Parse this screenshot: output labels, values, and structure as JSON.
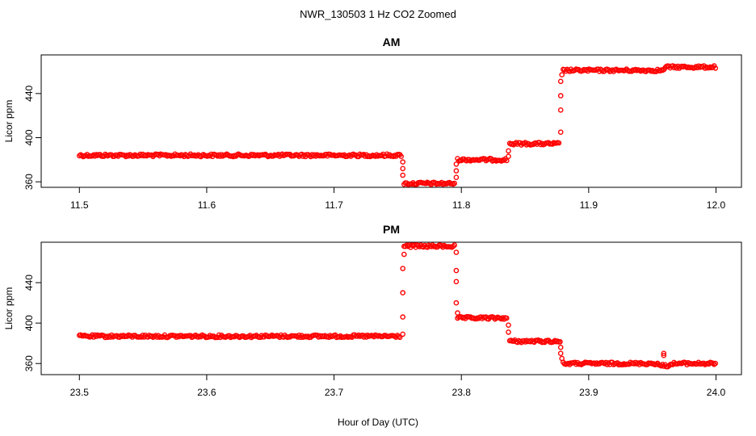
{
  "figure": {
    "title": "NWR_130503  1 Hz CO2 Zoomed",
    "xlabel": "Hour of Day (UTC)"
  },
  "chart_data": [
    {
      "type": "scatter",
      "title": "AM",
      "xlabel": "",
      "ylabel": "Licor ppm",
      "xlim": [
        11.47,
        12.02
      ],
      "ylim": [
        355,
        475
      ],
      "xticks": [
        "11.5",
        "11.6",
        "11.7",
        "11.8",
        "11.9",
        "12.0"
      ],
      "xtick_values": [
        11.5,
        11.6,
        11.7,
        11.8,
        11.9,
        12.0
      ],
      "yticks": [
        "360",
        "400",
        "440"
      ],
      "ytick_values": [
        360,
        400,
        440
      ],
      "series": [
        {
          "color": "#ff0000",
          "marker": "open-circle",
          "segments": [
            {
              "x0": 11.5,
              "x1": 11.753,
              "y": 384
            },
            {
              "x0": 11.755,
              "x1": 11.795,
              "y": 358.5
            },
            {
              "x0": 11.797,
              "x1": 11.836,
              "y": 380
            },
            {
              "x0": 11.838,
              "x1": 11.877,
              "y": 394.5
            },
            {
              "x0": 11.88,
              "x1": 11.96,
              "y": 461
            },
            {
              "x0": 11.96,
              "x1": 12.0,
              "y": 464
            }
          ],
          "transition_points": [
            {
              "x": 11.754,
              "y": 378
            },
            {
              "x": 11.754,
              "y": 372
            },
            {
              "x": 11.754,
              "y": 366
            },
            {
              "x": 11.796,
              "y": 364
            },
            {
              "x": 11.796,
              "y": 370
            },
            {
              "x": 11.796,
              "y": 376
            },
            {
              "x": 11.837,
              "y": 383
            },
            {
              "x": 11.837,
              "y": 388
            },
            {
              "x": 11.878,
              "y": 405
            },
            {
              "x": 11.878,
              "y": 425
            },
            {
              "x": 11.878,
              "y": 438
            },
            {
              "x": 11.878,
              "y": 451
            },
            {
              "x": 11.879,
              "y": 457
            }
          ]
        }
      ]
    },
    {
      "type": "scatter",
      "title": "PM",
      "xlabel": "",
      "ylabel": "Licor ppm",
      "xlim": [
        23.47,
        24.02
      ],
      "ylim": [
        349,
        480
      ],
      "xticks": [
        "23.5",
        "23.6",
        "23.7",
        "23.8",
        "23.9",
        "24.0"
      ],
      "xtick_values": [
        23.5,
        23.6,
        23.7,
        23.8,
        23.9,
        24.0
      ],
      "yticks": [
        "360",
        "400",
        "440"
      ],
      "ytick_values": [
        360,
        400,
        440
      ],
      "series": [
        {
          "color": "#ff0000",
          "marker": "open-circle",
          "segments": [
            {
              "x0": 23.5,
              "x1": 23.752,
              "y": 387
            },
            {
              "x0": 23.755,
              "x1": 23.795,
              "y": 476
            },
            {
              "x0": 23.797,
              "x1": 23.836,
              "y": 405
            },
            {
              "x0": 23.838,
              "x1": 23.878,
              "y": 382
            },
            {
              "x0": 23.88,
              "x1": 23.955,
              "y": 360
            },
            {
              "x0": 23.955,
              "x1": 23.965,
              "y": 358
            },
            {
              "x0": 23.965,
              "x1": 24.0,
              "y": 360
            }
          ],
          "transition_points": [
            {
              "x": 23.754,
              "y": 389
            },
            {
              "x": 23.754,
              "y": 406
            },
            {
              "x": 23.754,
              "y": 430
            },
            {
              "x": 23.754,
              "y": 454
            },
            {
              "x": 23.755,
              "y": 468
            },
            {
              "x": 23.796,
              "y": 470
            },
            {
              "x": 23.796,
              "y": 452
            },
            {
              "x": 23.796,
              "y": 441
            },
            {
              "x": 23.796,
              "y": 420
            },
            {
              "x": 23.797,
              "y": 410
            },
            {
              "x": 23.837,
              "y": 398
            },
            {
              "x": 23.837,
              "y": 391
            },
            {
              "x": 23.878,
              "y": 376
            },
            {
              "x": 23.878,
              "y": 370
            },
            {
              "x": 23.879,
              "y": 365
            },
            {
              "x": 23.959,
              "y": 368
            },
            {
              "x": 23.959,
              "y": 370
            }
          ]
        }
      ]
    }
  ]
}
